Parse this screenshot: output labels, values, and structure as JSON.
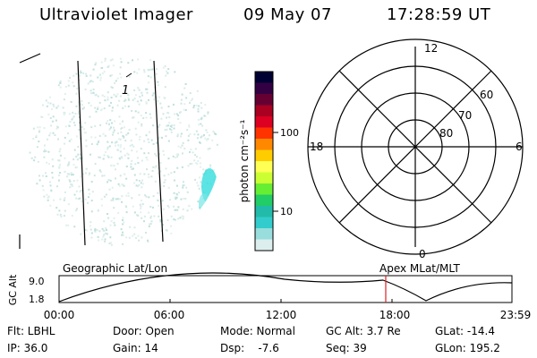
{
  "header": {
    "title": "Ultraviolet Imager",
    "date": "09 May 07",
    "time": "17:28:59 UT"
  },
  "image_panel": {
    "marker_label": "1"
  },
  "colorbar": {
    "unit_label": "photon cm⁻²s⁻¹",
    "tick_labels": [
      "100",
      "10"
    ],
    "colors": [
      "#000033",
      "#330044",
      "#660033",
      "#aa0022",
      "#dd0022",
      "#ff3300",
      "#ff8800",
      "#ffcc00",
      "#ffff55",
      "#ccff33",
      "#66ee33",
      "#22cc66",
      "#22bbaa",
      "#33cccc",
      "#99dddd",
      "#ddeeee"
    ]
  },
  "polar_plot": {
    "mlt_labels": {
      "top": "12",
      "left": "18",
      "right": "6",
      "bottom": "0"
    },
    "lat_labels": [
      "60",
      "70",
      "80"
    ]
  },
  "orbit": {
    "ylabel": "GC Alt",
    "y_ticks": [
      "9.0",
      "1.8"
    ],
    "left_label": "Geographic Lat/Lon",
    "right_label": "Apex MLat/MLT",
    "x_ticks": [
      "00:00",
      "06:00",
      "12:00",
      "18:00",
      "23:59"
    ],
    "marker_time": "17:28:59"
  },
  "status": {
    "filter": "Flt: LBHL",
    "ip": "IP: 36.0",
    "door": "Door: Open",
    "gain": "Gain: 14",
    "mode": "Mode: Normal",
    "dsp": "Dsp:    -7.6",
    "gc_alt": "GC Alt: 3.7 Re",
    "seq": "Seq: 39",
    "glat": "GLat: -14.4",
    "glon": "GLon: 195.2"
  }
}
